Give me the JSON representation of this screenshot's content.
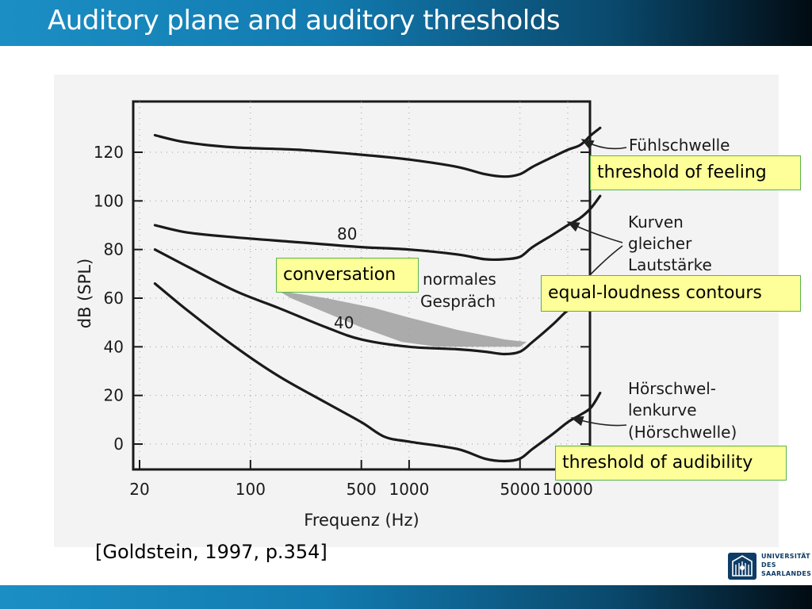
{
  "slide": {
    "title": "Auditory plane and auditory thresholds",
    "citation": "[Goldstein, 1997, p.354]"
  },
  "callouts": {
    "threshold_of_feeling": "threshold of feeling",
    "equal_loudness": "equal-loudness contours",
    "threshold_of_audibility": "threshold of audibility",
    "conversation": "conversation"
  },
  "logo": {
    "line1": "UNIVERSITÄT",
    "line2": "DES",
    "line3": "SAARLANDES"
  },
  "chart_data": {
    "type": "line",
    "xlabel": "Frequenz (Hz)",
    "ylabel": "dB (SPL)",
    "xscale": "log",
    "xlim": [
      20,
      20000
    ],
    "ylim": [
      -10,
      140
    ],
    "xticks": [
      20,
      100,
      500,
      1000,
      5000,
      10000
    ],
    "xtick_labels": [
      "20",
      "100",
      "500",
      "1000",
      "5000",
      "10000"
    ],
    "yticks": [
      0,
      20,
      40,
      60,
      80,
      100,
      120
    ],
    "grid": "dotted",
    "series": [
      {
        "name": "Fühlschwelle",
        "points": [
          [
            25,
            127
          ],
          [
            40,
            124
          ],
          [
            80,
            122
          ],
          [
            200,
            121
          ],
          [
            500,
            119
          ],
          [
            1000,
            117
          ],
          [
            2000,
            114
          ],
          [
            3000,
            111
          ],
          [
            4000,
            110
          ],
          [
            5000,
            111
          ],
          [
            6000,
            114
          ],
          [
            8000,
            118
          ],
          [
            10000,
            121
          ],
          [
            12000,
            123
          ],
          [
            14000,
            127
          ],
          [
            16000,
            130
          ]
        ]
      },
      {
        "name": "80",
        "points": [
          [
            25,
            90
          ],
          [
            40,
            87
          ],
          [
            80,
            85
          ],
          [
            200,
            83
          ],
          [
            500,
            81
          ],
          [
            1000,
            80
          ],
          [
            2000,
            78
          ],
          [
            3000,
            76
          ],
          [
            4000,
            76
          ],
          [
            5000,
            77
          ],
          [
            6000,
            81
          ],
          [
            8000,
            86
          ],
          [
            10000,
            90
          ],
          [
            12000,
            93
          ],
          [
            14000,
            97
          ],
          [
            16000,
            102
          ]
        ]
      },
      {
        "name": "40",
        "points": [
          [
            25,
            80
          ],
          [
            40,
            73
          ],
          [
            80,
            63
          ],
          [
            150,
            56
          ],
          [
            300,
            48
          ],
          [
            500,
            43
          ],
          [
            1000,
            40
          ],
          [
            2000,
            39
          ],
          [
            3000,
            38
          ],
          [
            4000,
            37
          ],
          [
            5000,
            38
          ],
          [
            6000,
            42
          ],
          [
            8000,
            49
          ],
          [
            10000,
            55
          ],
          [
            12000,
            58
          ],
          [
            14000,
            60
          ]
        ]
      },
      {
        "name": "Hörschwelle",
        "points": [
          [
            25,
            66
          ],
          [
            40,
            55
          ],
          [
            80,
            40
          ],
          [
            150,
            28
          ],
          [
            300,
            17
          ],
          [
            500,
            9
          ],
          [
            700,
            3
          ],
          [
            1000,
            1
          ],
          [
            2000,
            -2
          ],
          [
            3000,
            -6
          ],
          [
            4000,
            -7
          ],
          [
            5000,
            -6
          ],
          [
            6000,
            -2
          ],
          [
            8000,
            4
          ],
          [
            10000,
            9
          ],
          [
            12000,
            12
          ],
          [
            14000,
            15
          ],
          [
            16000,
            21
          ]
        ]
      }
    ],
    "regions": [
      {
        "name": "normales Gespräch",
        "points": [
          [
            150,
            63
          ],
          [
            300,
            60
          ],
          [
            600,
            56
          ],
          [
            1000,
            52
          ],
          [
            2000,
            47
          ],
          [
            4000,
            43
          ],
          [
            5500,
            42
          ],
          [
            5000,
            40
          ],
          [
            3000,
            40
          ],
          [
            1500,
            40
          ],
          [
            900,
            42
          ],
          [
            500,
            48
          ],
          [
            300,
            54
          ],
          [
            180,
            60
          ]
        ]
      }
    ],
    "annotations": [
      {
        "text": "Fühlschwelle",
        "arrow_to": [
          13500,
          127
        ]
      },
      {
        "text": "Kurven",
        "arrow_to": null
      },
      {
        "text": "gleicher",
        "arrow_to": null
      },
      {
        "text": "Lautstärke",
        "arrow_to": null
      },
      {
        "text": "Hörschwel-",
        "arrow_to": [
          14000,
          13
        ]
      },
      {
        "text": "lenkurve",
        "arrow_to": null
      },
      {
        "text": "(Hörschwelle)",
        "arrow_to": null
      },
      {
        "text": "normales",
        "arrow_to": null
      },
      {
        "text": "Gespräch",
        "arrow_to": null
      }
    ]
  }
}
